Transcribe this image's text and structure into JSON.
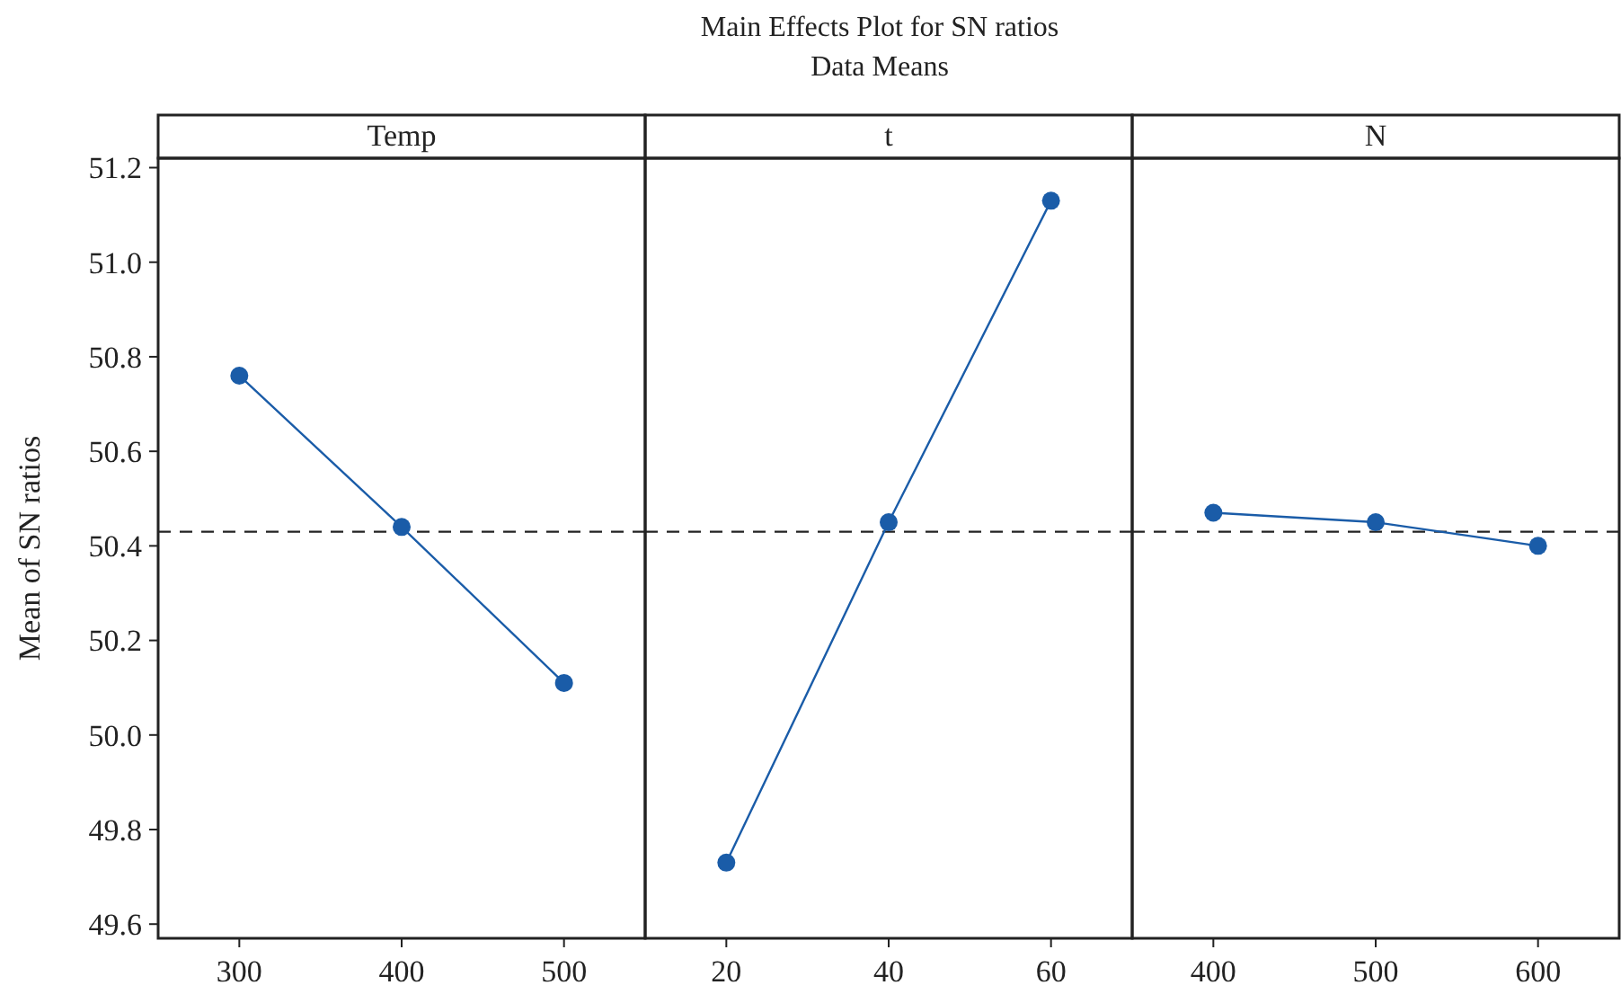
{
  "chart_data": [
    {
      "type": "line",
      "xlabel": "Temp",
      "ylabel": "Mean of SN ratios",
      "categories": [
        "300",
        "400",
        "500"
      ],
      "series": [
        {
          "color": "#1a5ca8",
          "values": [
            50.76,
            50.44,
            50.11
          ]
        }
      ],
      "ylim": [
        49.57,
        51.22
      ],
      "yticks": [
        49.6,
        49.8,
        {
          "value": 50,
          "label": "50.0"
        },
        50.2,
        50.4,
        50.6,
        50.8,
        {
          "value": 51,
          "label": "51.0"
        },
        51.2
      ],
      "ref_lines": [
        {
          "axis": "y",
          "value": 50.43,
          "line_style": "dashed"
        }
      ],
      "marker": "circle"
    },
    {
      "type": "line",
      "title": "Main Effects Plot for SN ratios",
      "subtitle": "Data Means",
      "xlabel": "t",
      "categories": [
        "20",
        "40",
        "60"
      ],
      "series": [
        {
          "color": "#1a5ca8",
          "values": [
            49.73,
            50.45,
            51.13
          ]
        }
      ],
      "ylim": [
        49.57,
        51.22
      ],
      "tick_labels": "x",
      "ref_lines": [
        {
          "axis": "y",
          "value": 50.43,
          "line_style": "dashed"
        }
      ],
      "marker": "circle"
    },
    {
      "type": "line",
      "xlabel": "N",
      "categories": [
        "400",
        "500",
        "600"
      ],
      "series": [
        {
          "color": "#1a5ca8",
          "values": [
            50.47,
            50.45,
            50.4
          ]
        }
      ],
      "ylim": [
        49.57,
        51.22
      ],
      "tick_labels": "x",
      "ref_lines": [
        {
          "axis": "y",
          "value": 50.43,
          "line_style": "dashed"
        }
      ],
      "marker": "circle"
    }
  ]
}
